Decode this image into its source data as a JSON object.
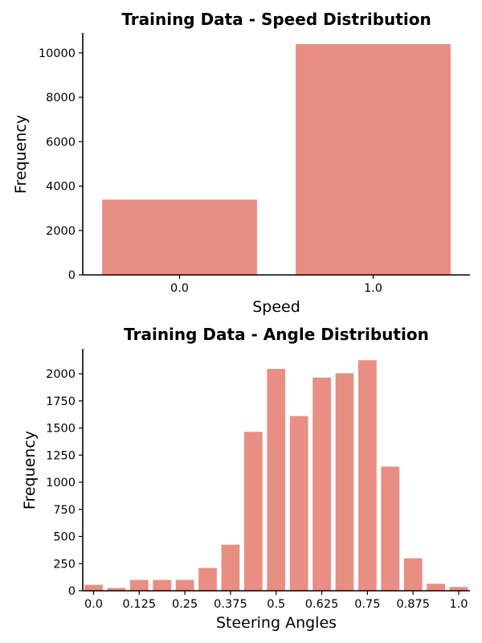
{
  "chart_data": [
    {
      "type": "bar",
      "title": "Training Data - Speed Distribution",
      "xlabel": "Speed",
      "ylabel": "Frequency",
      "categories": [
        "0.0",
        "1.0"
      ],
      "values": [
        3390,
        10400
      ],
      "ylim": [
        0,
        10900
      ],
      "yticks": [
        0,
        2000,
        4000,
        6000,
        8000,
        10000
      ],
      "xticklabels": [
        "0.0",
        "1.0"
      ],
      "bar_color": "#e88e83",
      "grid": false
    },
    {
      "type": "bar",
      "title": "Training Data - Angle Distribution",
      "xlabel": "Steering Angles",
      "ylabel": "Frequency",
      "categories": [
        "0.0",
        "0.0625",
        "0.125",
        "0.1875",
        "0.25",
        "0.3125",
        "0.375",
        "0.4375",
        "0.5",
        "0.5625",
        "0.625",
        "0.6875",
        "0.75",
        "0.8125",
        "0.875",
        "0.9375",
        "1.0"
      ],
      "values": [
        55,
        25,
        100,
        100,
        100,
        210,
        425,
        1465,
        2045,
        1610,
        1965,
        2005,
        2125,
        1145,
        300,
        65,
        35
      ],
      "ylim": [
        0,
        2230
      ],
      "yticks": [
        0,
        250,
        500,
        750,
        1000,
        1250,
        1500,
        1750,
        2000
      ],
      "xticklabels": [
        "0.0",
        "0.125",
        "0.25",
        "0.375",
        "0.5",
        "0.625",
        "0.75",
        "0.875",
        "1.0"
      ],
      "bar_color": "#e88e83",
      "grid": false
    }
  ]
}
